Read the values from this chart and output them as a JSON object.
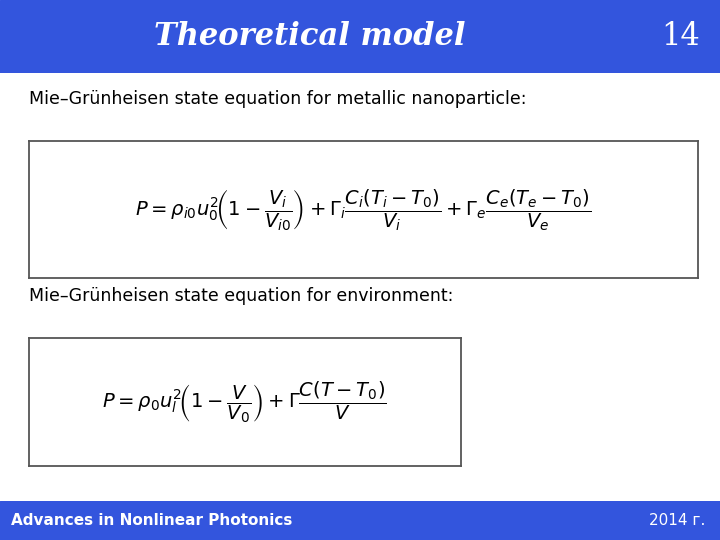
{
  "title": "Theoretical model",
  "slide_number": "14",
  "title_bg_color": "#3355DD",
  "title_text_color": "#FFFFFF",
  "slide_bg_color": "#FFFFFF",
  "footer_bg_color": "#3355DD",
  "footer_left": "Advances in Nonlinear Photonics",
  "footer_right": "2014 г.",
  "footer_text_color": "#FFFFFF",
  "label1": "Mie–Grünheisen state equation for metallic nanoparticle:",
  "label2": "Mie–Grünheisen state equation for environment:",
  "eq1": "P = \\rho_{i0}u_0^2\\!\\left(1 - \\dfrac{V_i}{V_{i0}}\\right) + \\Gamma_i\\dfrac{C_i\\left(T_i - T_0\\right)}{V_i} + \\Gamma_e\\dfrac{C_e\\left(T_e - T_0\\right)}{V_e}",
  "eq2": "P = \\rho_0 u_l^2\\!\\left(1 - \\dfrac{V}{V_0}\\right) + \\Gamma\\dfrac{C\\left(T - T_0\\right)}{V}",
  "box_edge_color": "#555555",
  "box_face_color": "#FFFFFF",
  "label_fontsize": 12.5,
  "eq_fontsize": 14,
  "title_fontsize": 22,
  "footer_fontsize": 11
}
